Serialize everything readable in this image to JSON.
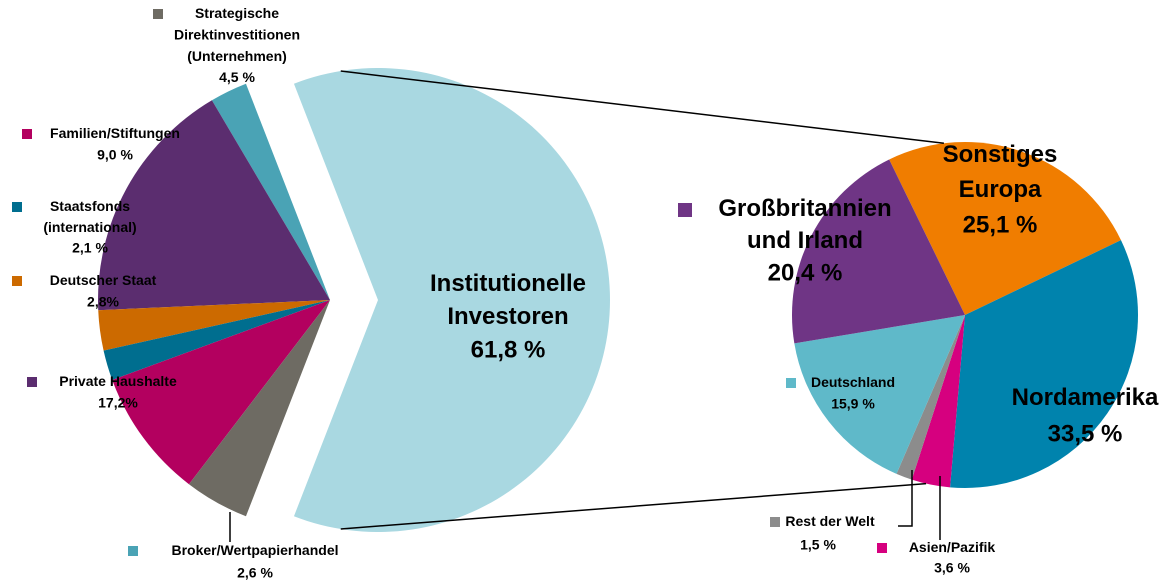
{
  "chart_data": [
    {
      "type": "pie",
      "categories": [
        "Institutionelle\nInvestoren",
        "Broker/Wertpapierhandel",
        "Private Haushalte",
        "Deutscher Staat",
        "Staatsfonds\n(international)",
        "Familien/Stiftungen",
        "Strategische\nDirektinvestitionen\n(Unternehmen)"
      ],
      "values": [
        61.8,
        2.6,
        17.2,
        2.8,
        2.1,
        9.0,
        4.5
      ],
      "value_labels": [
        "61,8 %",
        "2,6 %",
        "17,2%",
        "2,8%",
        "2,1 %",
        "9,0 %",
        "4,5 %"
      ],
      "colors": [
        "#a9d8e1",
        "#4aa3b5",
        "#5b2d6f",
        "#cc6a00",
        "#006e8f",
        "#b3005f",
        "#6e6b63"
      ]
    },
    {
      "type": "pie",
      "categories": [
        "Sonstiges\nEuropa",
        "Nordamerika",
        "Asien/Pazifik",
        "Rest der Welt",
        "Deutschland",
        "Großbritannien\nund Irland"
      ],
      "values": [
        25.1,
        33.5,
        3.6,
        1.5,
        15.9,
        20.4
      ],
      "value_labels": [
        "25,1 %",
        "33,5 %",
        "3,6 %",
        "1,5 %",
        "15,9 %",
        "20,4 %"
      ],
      "colors": [
        "#f07d00",
        "#0083ad",
        "#d6007f",
        "#8c8c8c",
        "#5fb9c9",
        "#6f3585"
      ]
    }
  ]
}
